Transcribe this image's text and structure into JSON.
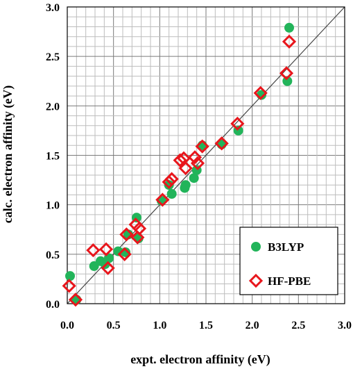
{
  "chart_data": {
    "type": "scatter",
    "title": "",
    "xlabel": "expt. electron affinity (eV)",
    "ylabel": "calc. electron affinity (eV)",
    "xlim": [
      0,
      3
    ],
    "ylim": [
      0,
      3
    ],
    "xticks": [
      "0.0",
      "0.5",
      "1.0",
      "1.5",
      "2.0",
      "2.5",
      "3.0"
    ],
    "yticks": [
      "0.0",
      "0.5",
      "1.0",
      "1.5",
      "2.0",
      "2.5",
      "3.0"
    ],
    "grid": true,
    "minor_grid_step": 0.1,
    "major_grid_step": 0.5,
    "legend_position": "bottom-right",
    "reference_line": "y = x",
    "series": [
      {
        "name": "B3LYP",
        "marker": "filled-circle",
        "color": "#22b45a",
        "x": [
          0.03,
          0.1,
          0.29,
          0.36,
          0.41,
          0.45,
          0.55,
          0.63,
          0.66,
          0.75,
          0.77,
          1.02,
          1.1,
          1.13,
          1.27,
          1.28,
          1.37,
          1.4,
          1.46,
          1.67,
          1.85,
          2.1,
          2.38,
          2.4
        ],
        "y": [
          0.28,
          0.04,
          0.38,
          0.43,
          0.4,
          0.46,
          0.53,
          0.52,
          0.7,
          0.87,
          0.66,
          1.04,
          1.2,
          1.11,
          1.17,
          1.2,
          1.27,
          1.35,
          1.6,
          1.61,
          1.75,
          2.11,
          2.25,
          2.79
        ]
      },
      {
        "name": "HF-PBE",
        "marker": "open-diamond",
        "color": "#e8161c",
        "x": [
          0.02,
          0.09,
          0.28,
          0.42,
          0.44,
          0.62,
          0.64,
          0.74,
          0.76,
          0.78,
          1.03,
          1.1,
          1.13,
          1.22,
          1.26,
          1.28,
          1.38,
          1.41,
          1.46,
          1.67,
          1.84,
          2.09,
          2.37,
          2.4
        ],
        "y": [
          0.18,
          0.04,
          0.54,
          0.55,
          0.36,
          0.5,
          0.7,
          0.8,
          0.67,
          0.76,
          1.05,
          1.23,
          1.26,
          1.45,
          1.47,
          1.37,
          1.48,
          1.42,
          1.59,
          1.62,
          1.82,
          2.13,
          2.33,
          2.65
        ]
      }
    ]
  }
}
